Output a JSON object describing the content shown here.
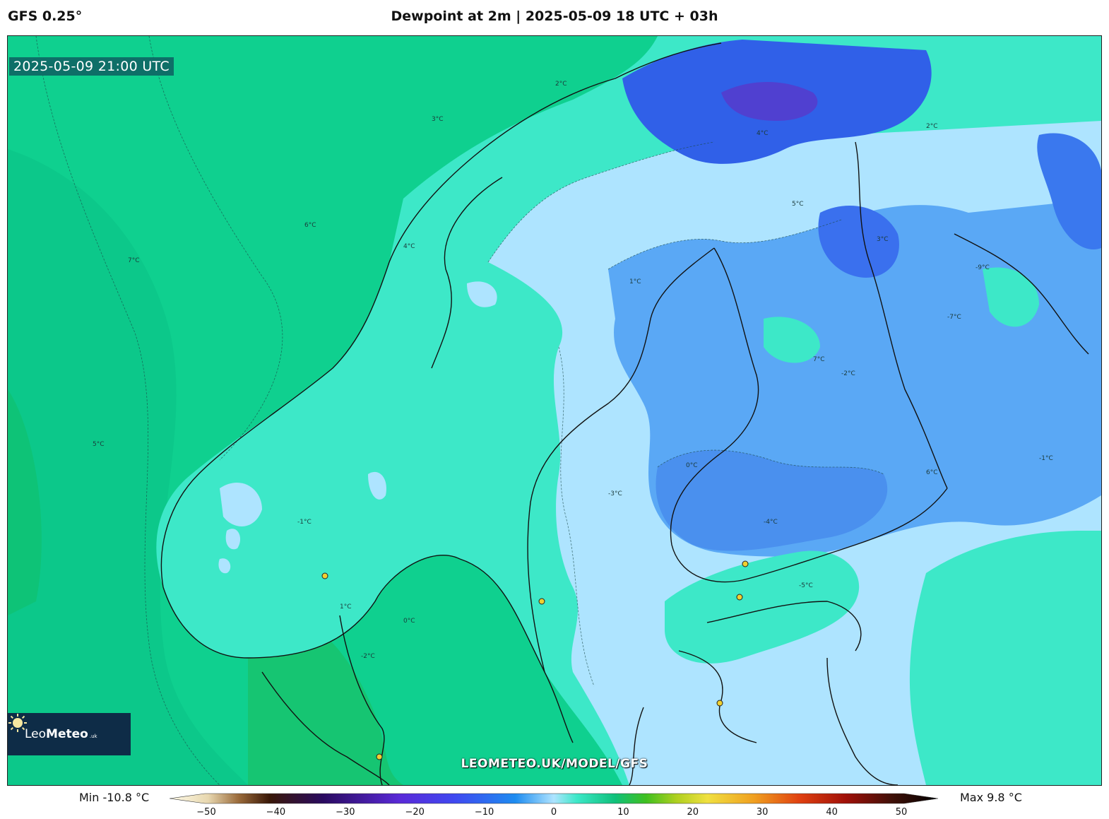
{
  "header": {
    "model": "GFS 0.25°",
    "title": "Dewpoint at 2m | 2025-05-09 18 UTC + 03h"
  },
  "map": {
    "valid_time": "2025-05-09 21:00 UTC",
    "watermark": "LEOMETEO.UK/MODEL/GFS",
    "contour_labels": [
      "7°C",
      "6°C",
      "5°C",
      "4°C",
      "3°C",
      "2°C",
      "1°C",
      "0°C",
      "-1°C",
      "-2°C",
      "-3°C",
      "-4°C",
      "-5°C",
      "-7°C",
      "-9°C"
    ]
  },
  "logo": {
    "text_light": "Leo",
    "text_bold": "Meteo",
    "suffix": ".uk"
  },
  "legend": {
    "min_label": "Min -10.8 °C",
    "max_label": "Max 9.8 °C",
    "ticks": [
      "−50",
      "−40",
      "−30",
      "−20",
      "−10",
      "0",
      "10",
      "20",
      "30",
      "40",
      "50"
    ]
  },
  "colors": {
    "warm_green": "#10c98a",
    "sea_green": "#0fd08f",
    "mint": "#3de8c8",
    "light_blue": "#aee4ff",
    "blue": "#5aa8f5",
    "deep_blue": "#3060e8",
    "violet": "#5040d0"
  }
}
